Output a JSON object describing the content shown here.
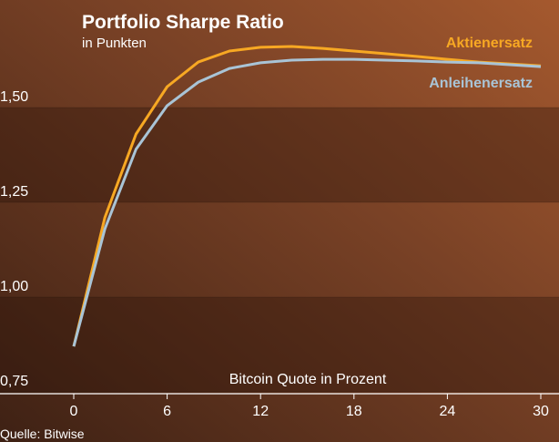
{
  "chart_data": {
    "type": "line",
    "title": "Portfolio Sharpe Ratio",
    "subtitle": "in Punkten",
    "x_label": "Bitcoin Quote in Prozent",
    "source": "Quelle: Bitwise",
    "x": [
      0,
      2,
      4,
      6,
      8,
      10,
      12,
      14,
      16,
      18,
      20,
      22,
      24,
      26,
      28,
      30
    ],
    "series": [
      {
        "name": "Aktienersatz",
        "color": "#f7a823",
        "values": [
          0.87,
          1.21,
          1.43,
          1.555,
          1.62,
          1.649,
          1.659,
          1.661,
          1.656,
          1.649,
          1.642,
          1.635,
          1.627,
          1.62,
          1.615,
          1.61
        ]
      },
      {
        "name": "Anleihenersatz",
        "color": "#a9c4d6",
        "values": [
          0.87,
          1.18,
          1.39,
          1.505,
          1.567,
          1.603,
          1.618,
          1.625,
          1.627,
          1.627,
          1.625,
          1.623,
          1.62,
          1.618,
          1.613,
          1.608
        ]
      }
    ],
    "xlim": [
      0,
      30
    ],
    "xticks": [
      0,
      6,
      12,
      18,
      24,
      30
    ],
    "ylim": [
      0.75,
      1.78
    ],
    "yticks": [
      {
        "value": 0.75,
        "label": "0,75"
      },
      {
        "value": 1.0,
        "label": "1,00"
      },
      {
        "value": 1.25,
        "label": "1,25"
      },
      {
        "value": 1.5,
        "label": "1,50"
      }
    ],
    "bands": true
  }
}
